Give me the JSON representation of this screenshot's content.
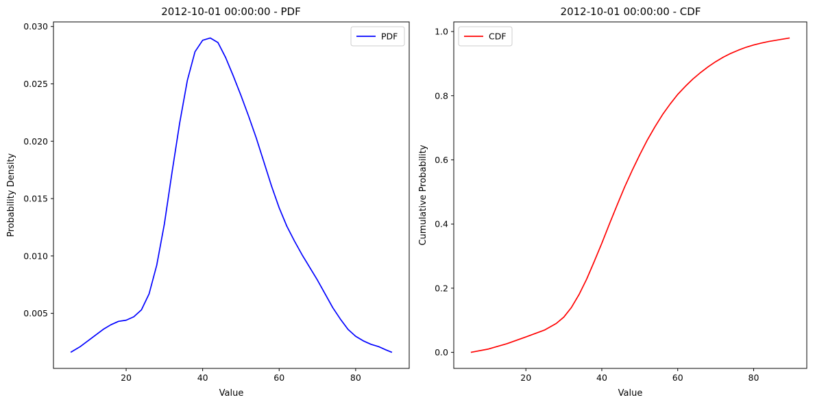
{
  "chart_data": [
    {
      "type": "line",
      "title": "2012-10-01 00:00:00 - PDF",
      "xlabel": "Value",
      "ylabel": "Probability Density",
      "xlim": [
        1,
        94
      ],
      "ylim": [
        0.0002,
        0.0304
      ],
      "xticks": [
        20,
        40,
        60,
        80
      ],
      "yticks": [
        0.005,
        0.01,
        0.015,
        0.02,
        0.025,
        0.03
      ],
      "ytick_labels": [
        "0.005",
        "0.010",
        "0.015",
        "0.020",
        "0.025",
        "0.030"
      ],
      "legend": "top-right",
      "series": [
        {
          "name": "PDF",
          "color": "#0000ff",
          "x": [
            5.5,
            8,
            10,
            12,
            14,
            16,
            18,
            20,
            22,
            24,
            26,
            28,
            30,
            32,
            34,
            36,
            38,
            40,
            42,
            44,
            46,
            48,
            50,
            52,
            54,
            56,
            58,
            60,
            62,
            64,
            66,
            68,
            70,
            72,
            74,
            76,
            78,
            80,
            82,
            84,
            86,
            88,
            89.5
          ],
          "y": [
            0.0016,
            0.0021,
            0.0026,
            0.0031,
            0.0036,
            0.004,
            0.0043,
            0.0044,
            0.0047,
            0.0053,
            0.0067,
            0.0092,
            0.0128,
            0.0173,
            0.0216,
            0.0253,
            0.0278,
            0.0288,
            0.029,
            0.0286,
            0.0273,
            0.0257,
            0.024,
            0.0222,
            0.0203,
            0.0182,
            0.0161,
            0.0142,
            0.0126,
            0.0113,
            0.0101,
            0.009,
            0.0079,
            0.0067,
            0.0055,
            0.0045,
            0.0036,
            0.003,
            0.0026,
            0.0023,
            0.0021,
            0.0018,
            0.0016
          ]
        }
      ]
    },
    {
      "type": "line",
      "title": "2012-10-01 00:00:00 - CDF",
      "xlabel": "Value",
      "ylabel": "Cumulative Probability",
      "xlim": [
        1,
        94
      ],
      "ylim": [
        -0.05,
        1.03
      ],
      "xticks": [
        20,
        40,
        60,
        80
      ],
      "yticks": [
        0.0,
        0.2,
        0.4,
        0.6,
        0.8,
        1.0
      ],
      "ytick_labels": [
        "0.0",
        "0.2",
        "0.4",
        "0.6",
        "0.8",
        "1.0"
      ],
      "legend": "top-left",
      "series": [
        {
          "name": "CDF",
          "color": "#ff0000",
          "x": [
            5.5,
            10,
            15,
            20,
            25,
            28,
            30,
            32,
            34,
            36,
            38,
            40,
            42,
            44,
            46,
            48,
            50,
            52,
            54,
            56,
            58,
            60,
            62,
            64,
            66,
            68,
            70,
            72,
            74,
            76,
            78,
            80,
            82,
            84,
            86,
            88,
            89.5
          ],
          "y": [
            0.0,
            0.01,
            0.027,
            0.048,
            0.07,
            0.09,
            0.11,
            0.14,
            0.18,
            0.228,
            0.283,
            0.34,
            0.4,
            0.458,
            0.515,
            0.567,
            0.616,
            0.662,
            0.703,
            0.741,
            0.774,
            0.804,
            0.829,
            0.852,
            0.872,
            0.89,
            0.906,
            0.92,
            0.932,
            0.942,
            0.951,
            0.958,
            0.964,
            0.969,
            0.973,
            0.977,
            0.98
          ]
        }
      ]
    }
  ]
}
